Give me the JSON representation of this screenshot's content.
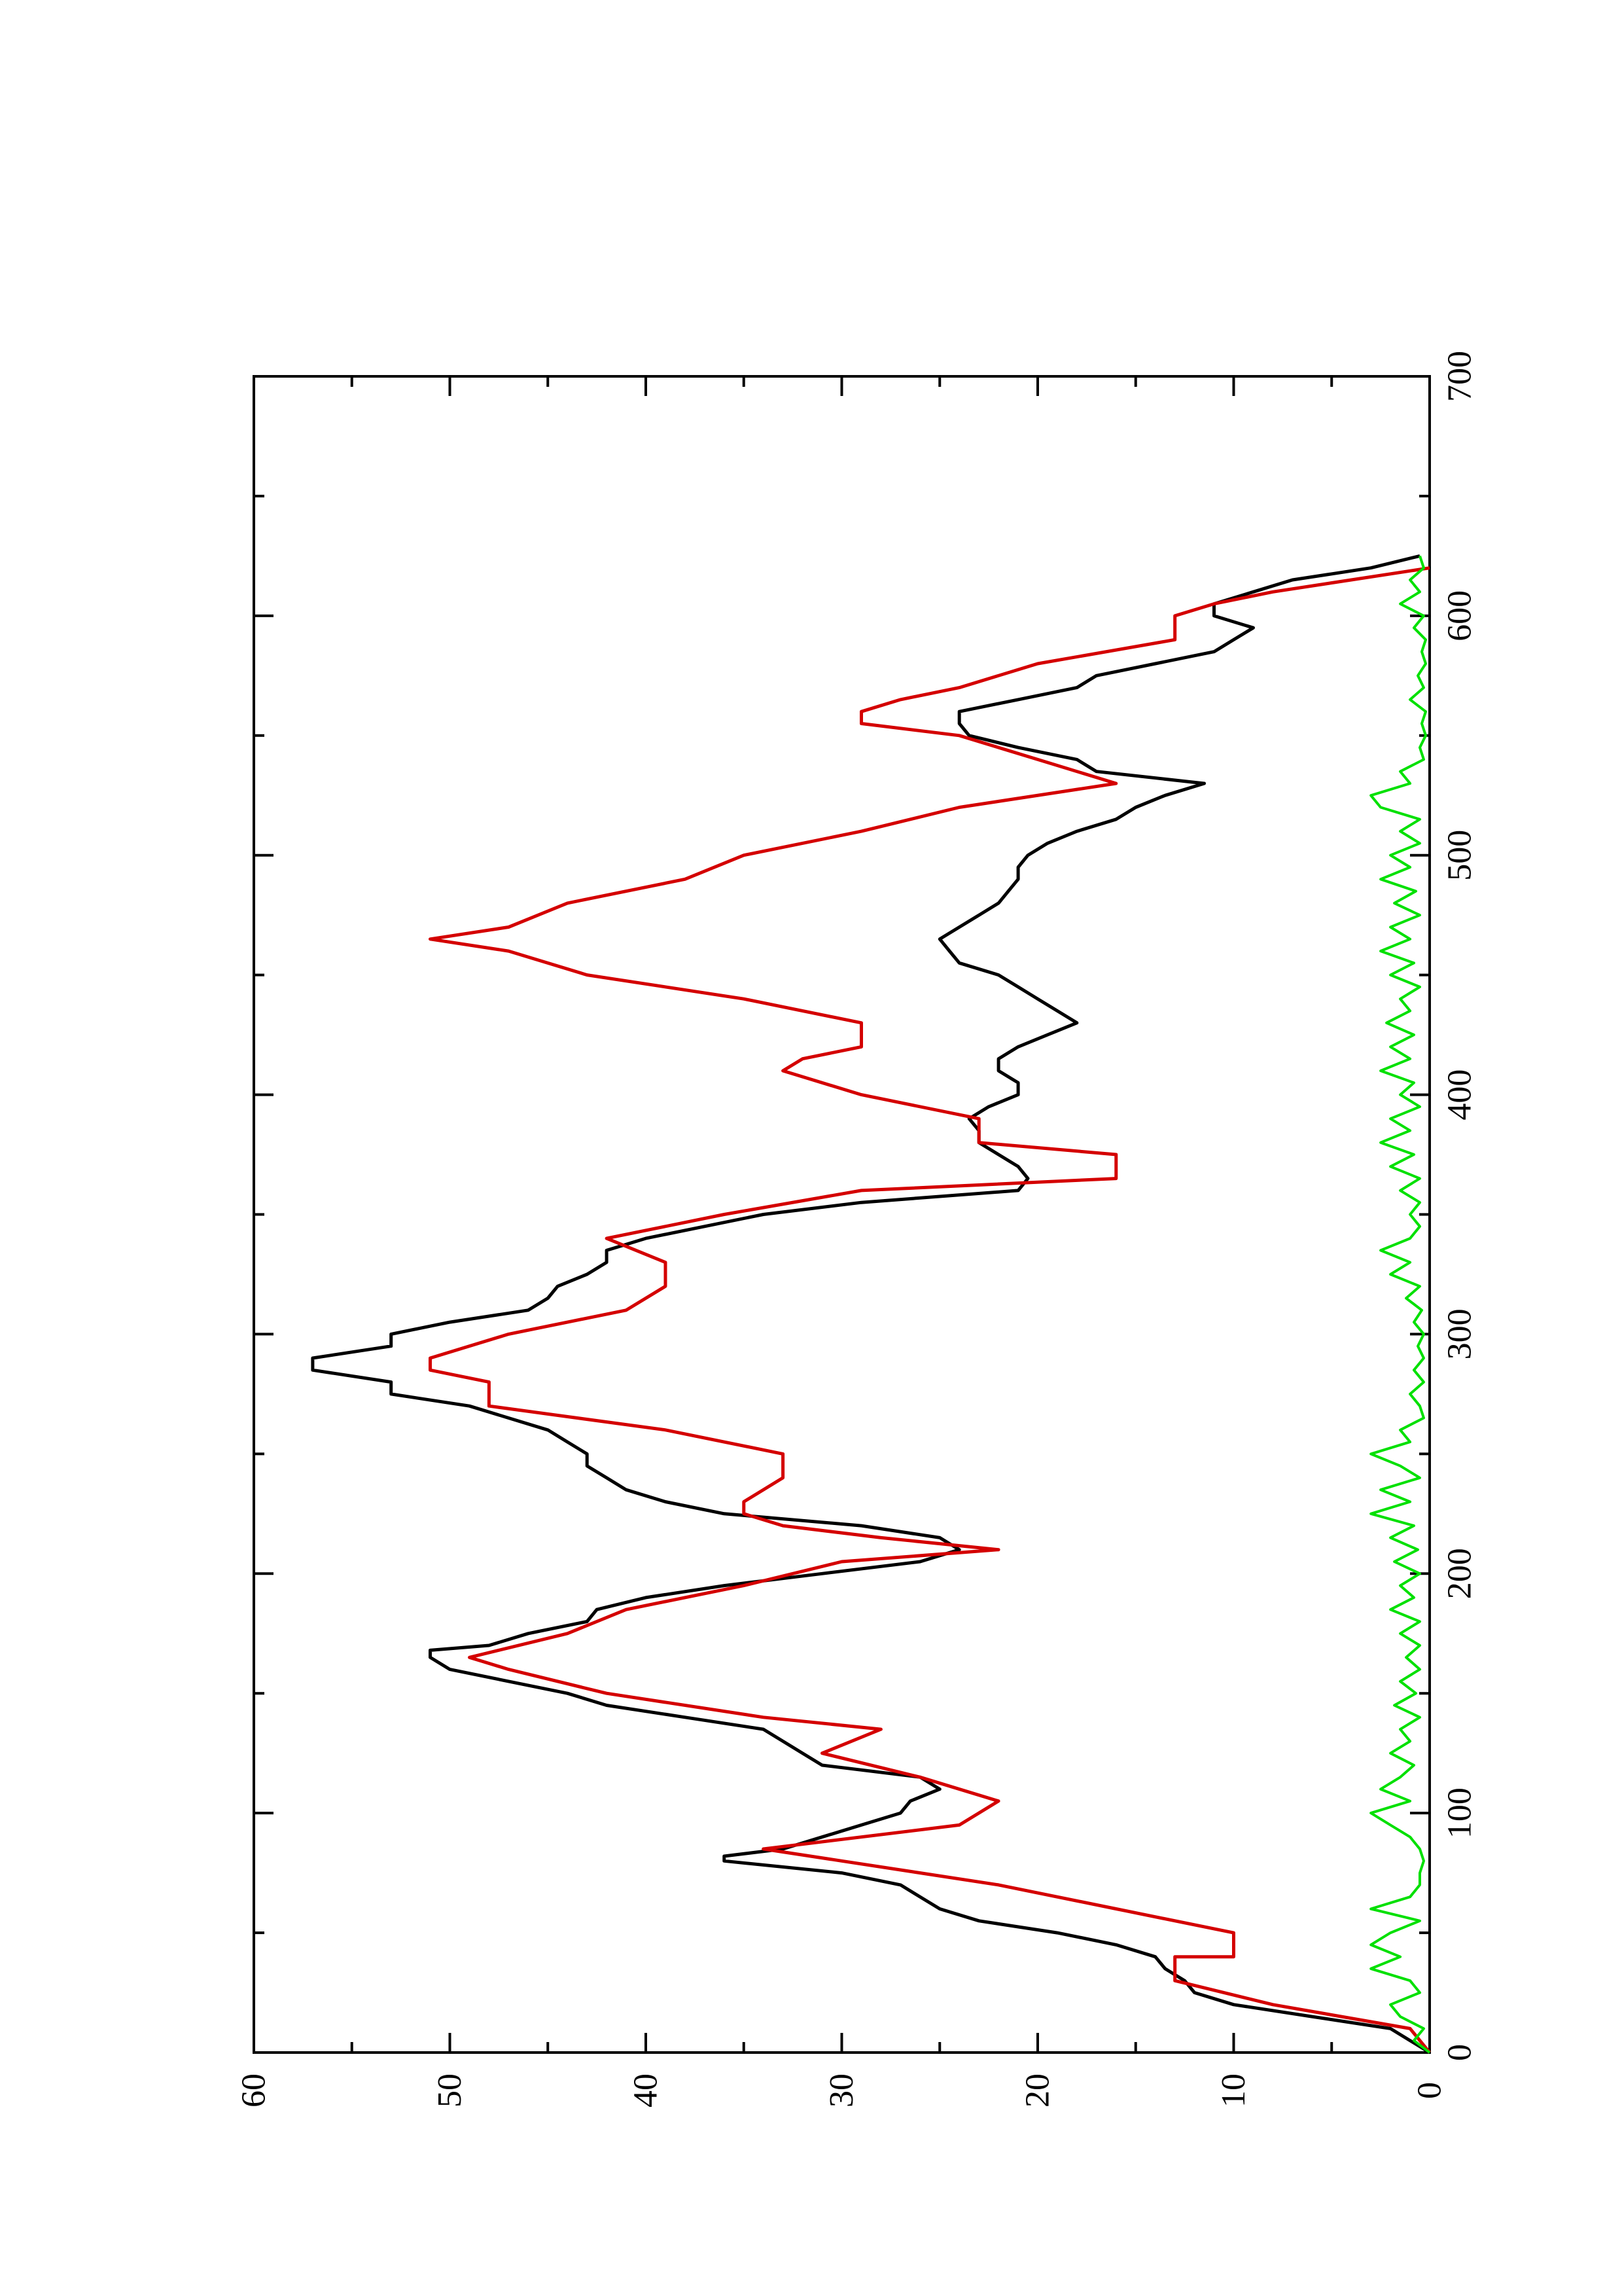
{
  "chart_data": {
    "type": "line",
    "orientation": "rotated 90 degrees counter-clockwise (x axis runs bottom to top, y axis runs right to left)",
    "title": "",
    "xlabel": "",
    "ylabel": "",
    "xlim": [
      0,
      700
    ],
    "ylim": [
      0,
      60
    ],
    "xticks": [
      0,
      100,
      200,
      300,
      400,
      500,
      600,
      700
    ],
    "xtick_labels": [
      "0",
      "100",
      "200",
      "300",
      "400",
      "500",
      "600",
      "700"
    ],
    "yticks": [
      0,
      10,
      20,
      30,
      40,
      50,
      60
    ],
    "ytick_labels": [
      "0",
      "10",
      "20",
      "30",
      "40",
      "50",
      "60"
    ],
    "grid": false,
    "legend": "none",
    "series": [
      {
        "color": "#000000",
        "points": [
          [
            0,
            0
          ],
          [
            5,
            1
          ],
          [
            10,
            2
          ],
          [
            15,
            6
          ],
          [
            20,
            10
          ],
          [
            25,
            12
          ],
          [
            30,
            12.5
          ],
          [
            35,
            13.5
          ],
          [
            40,
            14
          ],
          [
            45,
            16
          ],
          [
            50,
            19
          ],
          [
            55,
            23
          ],
          [
            60,
            25
          ],
          [
            65,
            26
          ],
          [
            70,
            27
          ],
          [
            75,
            30
          ],
          [
            80,
            36
          ],
          [
            82,
            36
          ],
          [
            85,
            33
          ],
          [
            90,
            31
          ],
          [
            95,
            29
          ],
          [
            100,
            27
          ],
          [
            105,
            26.5
          ],
          [
            110,
            25
          ],
          [
            115,
            26
          ],
          [
            120,
            31
          ],
          [
            125,
            32
          ],
          [
            130,
            33
          ],
          [
            135,
            34
          ],
          [
            140,
            38
          ],
          [
            145,
            42
          ],
          [
            150,
            44
          ],
          [
            155,
            47
          ],
          [
            160,
            50
          ],
          [
            165,
            51
          ],
          [
            168,
            51
          ],
          [
            170,
            48
          ],
          [
            175,
            46
          ],
          [
            180,
            43
          ],
          [
            185,
            42.5
          ],
          [
            190,
            40
          ],
          [
            195,
            36
          ],
          [
            200,
            31
          ],
          [
            205,
            26
          ],
          [
            210,
            24
          ],
          [
            215,
            25
          ],
          [
            220,
            29
          ],
          [
            225,
            36
          ],
          [
            230,
            39
          ],
          [
            235,
            41
          ],
          [
            240,
            42
          ],
          [
            245,
            43
          ],
          [
            250,
            43
          ],
          [
            255,
            44
          ],
          [
            260,
            45
          ],
          [
            265,
            47
          ],
          [
            270,
            49
          ],
          [
            275,
            53
          ],
          [
            280,
            53
          ],
          [
            285,
            57
          ],
          [
            290,
            57
          ],
          [
            295,
            53
          ],
          [
            300,
            53
          ],
          [
            305,
            50
          ],
          [
            310,
            46
          ],
          [
            315,
            45
          ],
          [
            320,
            44.5
          ],
          [
            325,
            43
          ],
          [
            330,
            42
          ],
          [
            335,
            42
          ],
          [
            340,
            40
          ],
          [
            345,
            37
          ],
          [
            350,
            34
          ],
          [
            355,
            29
          ],
          [
            360,
            21
          ],
          [
            365,
            20.5
          ],
          [
            370,
            21
          ],
          [
            375,
            22
          ],
          [
            380,
            23
          ],
          [
            385,
            23
          ],
          [
            390,
            23.5
          ],
          [
            395,
            22.5
          ],
          [
            400,
            21
          ],
          [
            405,
            21
          ],
          [
            410,
            22
          ],
          [
            415,
            22
          ],
          [
            420,
            21
          ],
          [
            425,
            19.5
          ],
          [
            430,
            18
          ],
          [
            435,
            19
          ],
          [
            440,
            20
          ],
          [
            445,
            21
          ],
          [
            450,
            22
          ],
          [
            455,
            24
          ],
          [
            460,
            24.5
          ],
          [
            465,
            25
          ],
          [
            470,
            24
          ],
          [
            475,
            23
          ],
          [
            480,
            22
          ],
          [
            485,
            21.5
          ],
          [
            490,
            21
          ],
          [
            495,
            21
          ],
          [
            500,
            20.5
          ],
          [
            505,
            19.5
          ],
          [
            510,
            18
          ],
          [
            515,
            16
          ],
          [
            520,
            15
          ],
          [
            525,
            13.5
          ],
          [
            530,
            11.5
          ],
          [
            535,
            17
          ],
          [
            540,
            18
          ],
          [
            545,
            21
          ],
          [
            550,
            23.5
          ],
          [
            555,
            24
          ],
          [
            560,
            24
          ],
          [
            565,
            21
          ],
          [
            570,
            18
          ],
          [
            575,
            17
          ],
          [
            580,
            14
          ],
          [
            585,
            11
          ],
          [
            590,
            10
          ],
          [
            595,
            9
          ],
          [
            600,
            11
          ],
          [
            605,
            11
          ],
          [
            610,
            9
          ],
          [
            615,
            7
          ],
          [
            620,
            3
          ],
          [
            625,
            0.5
          ]
        ]
      },
      {
        "color": "#d40000",
        "points": [
          [
            0,
            0
          ],
          [
            10,
            1
          ],
          [
            20,
            8
          ],
          [
            30,
            13
          ],
          [
            40,
            13
          ],
          [
            40,
            10
          ],
          [
            50,
            10
          ],
          [
            60,
            16
          ],
          [
            70,
            22
          ],
          [
            80,
            30
          ],
          [
            85,
            34
          ],
          [
            95,
            24
          ],
          [
            105,
            22
          ],
          [
            115,
            26
          ],
          [
            125,
            31
          ],
          [
            135,
            28
          ],
          [
            140,
            34
          ],
          [
            150,
            42
          ],
          [
            160,
            47
          ],
          [
            165,
            49
          ],
          [
            175,
            44
          ],
          [
            185,
            41
          ],
          [
            195,
            35
          ],
          [
            205,
            30
          ],
          [
            210,
            22
          ],
          [
            215,
            28
          ],
          [
            220,
            33
          ],
          [
            225,
            35
          ],
          [
            230,
            35
          ],
          [
            240,
            33
          ],
          [
            250,
            33
          ],
          [
            260,
            39
          ],
          [
            270,
            48
          ],
          [
            280,
            48
          ],
          [
            285,
            51
          ],
          [
            290,
            51
          ],
          [
            300,
            47
          ],
          [
            310,
            41
          ],
          [
            320,
            39
          ],
          [
            330,
            39
          ],
          [
            340,
            42
          ],
          [
            350,
            36
          ],
          [
            360,
            29
          ],
          [
            365,
            16
          ],
          [
            375,
            16
          ],
          [
            380,
            23
          ],
          [
            390,
            23
          ],
          [
            400,
            29
          ],
          [
            410,
            33
          ],
          [
            415,
            32
          ],
          [
            420,
            29
          ],
          [
            425,
            29
          ],
          [
            430,
            29
          ],
          [
            440,
            35
          ],
          [
            450,
            43
          ],
          [
            460,
            47
          ],
          [
            465,
            51
          ],
          [
            470,
            47
          ],
          [
            480,
            44
          ],
          [
            490,
            38
          ],
          [
            500,
            35
          ],
          [
            510,
            29
          ],
          [
            520,
            24
          ],
          [
            530,
            16
          ],
          [
            540,
            20
          ],
          [
            550,
            24
          ],
          [
            555,
            29
          ],
          [
            560,
            29
          ],
          [
            565,
            27
          ],
          [
            570,
            24
          ],
          [
            580,
            20
          ],
          [
            590,
            13
          ],
          [
            600,
            13
          ],
          [
            605,
            11
          ],
          [
            610,
            8
          ],
          [
            615,
            4
          ],
          [
            620,
            0
          ]
        ]
      },
      {
        "color": "#00e000",
        "points": [
          [
            0,
            0
          ],
          [
            5,
            0.8
          ],
          [
            10,
            0.3
          ],
          [
            15,
            1.5
          ],
          [
            20,
            2
          ],
          [
            25,
            0.5
          ],
          [
            30,
            1
          ],
          [
            35,
            3
          ],
          [
            40,
            1.5
          ],
          [
            45,
            3
          ],
          [
            50,
            2
          ],
          [
            55,
            0.5
          ],
          [
            60,
            3
          ],
          [
            65,
            1
          ],
          [
            70,
            0.5
          ],
          [
            75,
            0.5
          ],
          [
            80,
            0.3
          ],
          [
            85,
            0.5
          ],
          [
            90,
            1
          ],
          [
            95,
            2
          ],
          [
            100,
            3
          ],
          [
            105,
            1
          ],
          [
            110,
            2.5
          ],
          [
            115,
            1.5
          ],
          [
            120,
            0.8
          ],
          [
            125,
            2
          ],
          [
            130,
            1
          ],
          [
            135,
            1.5
          ],
          [
            140,
            0.5
          ],
          [
            145,
            1.8
          ],
          [
            150,
            0.7
          ],
          [
            155,
            1.5
          ],
          [
            160,
            0.5
          ],
          [
            165,
            1.2
          ],
          [
            170,
            0.5
          ],
          [
            175,
            1.5
          ],
          [
            180,
            0.5
          ],
          [
            185,
            2
          ],
          [
            190,
            0.8
          ],
          [
            195,
            1.5
          ],
          [
            200,
            0.5
          ],
          [
            205,
            1.8
          ],
          [
            210,
            0.6
          ],
          [
            215,
            2
          ],
          [
            220,
            0.8
          ],
          [
            225,
            3
          ],
          [
            230,
            1
          ],
          [
            235,
            2.5
          ],
          [
            240,
            0.5
          ],
          [
            245,
            1.5
          ],
          [
            250,
            3
          ],
          [
            255,
            1
          ],
          [
            260,
            1.5
          ],
          [
            265,
            0.3
          ],
          [
            270,
            0.5
          ],
          [
            275,
            1
          ],
          [
            280,
            0.3
          ],
          [
            285,
            0.8
          ],
          [
            290,
            0.3
          ],
          [
            295,
            0.6
          ],
          [
            300,
            0.3
          ],
          [
            305,
            0.8
          ],
          [
            310,
            0.4
          ],
          [
            315,
            1.2
          ],
          [
            320,
            0.5
          ],
          [
            325,
            2
          ],
          [
            330,
            1
          ],
          [
            335,
            2.5
          ],
          [
            340,
            1
          ],
          [
            345,
            0.5
          ],
          [
            350,
            1
          ],
          [
            355,
            0.5
          ],
          [
            360,
            1.5
          ],
          [
            365,
            0.5
          ],
          [
            370,
            2
          ],
          [
            375,
            0.8
          ],
          [
            380,
            2.5
          ],
          [
            385,
            1
          ],
          [
            390,
            2
          ],
          [
            395,
            0.5
          ],
          [
            400,
            1.5
          ],
          [
            405,
            0.8
          ],
          [
            410,
            2.5
          ],
          [
            415,
            1
          ],
          [
            420,
            2
          ],
          [
            425,
            0.8
          ],
          [
            430,
            2.2
          ],
          [
            435,
            1
          ],
          [
            440,
            1.5
          ],
          [
            445,
            0.5
          ],
          [
            450,
            2
          ],
          [
            455,
            0.8
          ],
          [
            460,
            2.5
          ],
          [
            465,
            1
          ],
          [
            470,
            2
          ],
          [
            475,
            0.5
          ],
          [
            480,
            1.8
          ],
          [
            485,
            0.7
          ],
          [
            490,
            2.5
          ],
          [
            495,
            1
          ],
          [
            500,
            2
          ],
          [
            505,
            0.5
          ],
          [
            510,
            1.5
          ],
          [
            515,
            0.5
          ],
          [
            520,
            2.5
          ],
          [
            525,
            3
          ],
          [
            530,
            1
          ],
          [
            535,
            1.5
          ],
          [
            540,
            0.3
          ],
          [
            545,
            0.5
          ],
          [
            550,
            0.2
          ],
          [
            555,
            0.4
          ],
          [
            560,
            0.2
          ],
          [
            565,
            1
          ],
          [
            570,
            0.3
          ],
          [
            575,
            0.6
          ],
          [
            580,
            0.2
          ],
          [
            585,
            0.4
          ],
          [
            590,
            0.2
          ],
          [
            595,
            0.8
          ],
          [
            600,
            0.3
          ],
          [
            605,
            1.5
          ],
          [
            610,
            0.5
          ],
          [
            615,
            1
          ],
          [
            620,
            0.3
          ],
          [
            625,
            0.5
          ]
        ]
      }
    ]
  }
}
